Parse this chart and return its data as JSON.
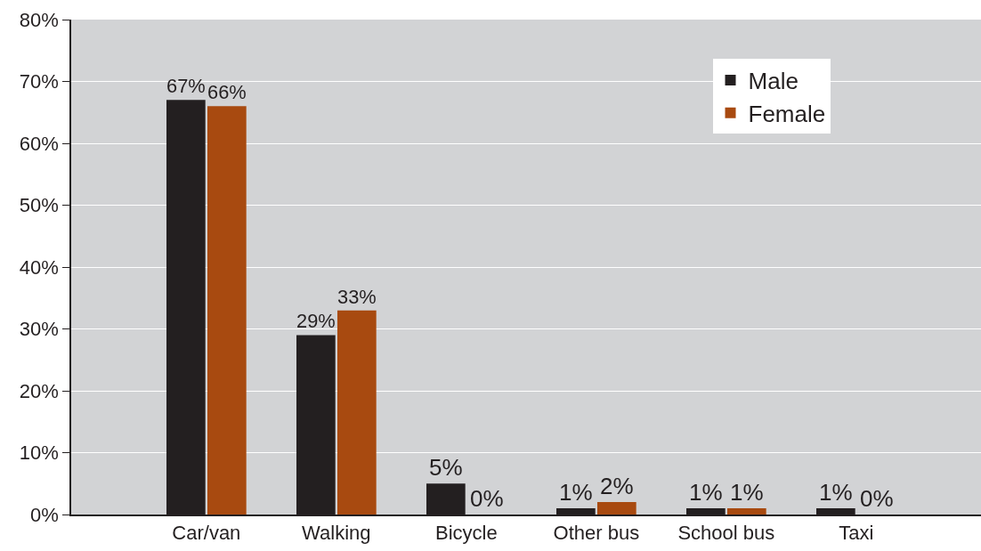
{
  "chart_data": {
    "type": "bar",
    "categories": [
      "Car/van",
      "Walking",
      "Bicycle",
      "Other bus",
      "School bus",
      "Taxi"
    ],
    "series": [
      {
        "name": "Male",
        "color": "#231f20",
        "values": [
          67,
          29,
          5,
          1,
          1,
          1
        ],
        "value_labels": [
          "67%",
          "29%",
          "5%",
          "1%",
          "1%",
          "1%"
        ]
      },
      {
        "name": "Female",
        "color": "#a84a10",
        "values": [
          66,
          33,
          0,
          2,
          1,
          0
        ],
        "value_labels": [
          "66%",
          "33%",
          "0%",
          "2%",
          "1%",
          "0%"
        ]
      }
    ],
    "ylim": [
      0,
      80
    ],
    "yticks": [
      {
        "value": 0,
        "label": "0%"
      },
      {
        "value": 10,
        "label": "10%"
      },
      {
        "value": 20,
        "label": "20%"
      },
      {
        "value": 30,
        "label": "30%"
      },
      {
        "value": 40,
        "label": "40%"
      },
      {
        "value": 50,
        "label": "50%"
      },
      {
        "value": 60,
        "label": "60%"
      },
      {
        "value": 70,
        "label": "70%"
      },
      {
        "value": 80,
        "label": "80%"
      }
    ],
    "grid": "y",
    "legend": "top right"
  }
}
